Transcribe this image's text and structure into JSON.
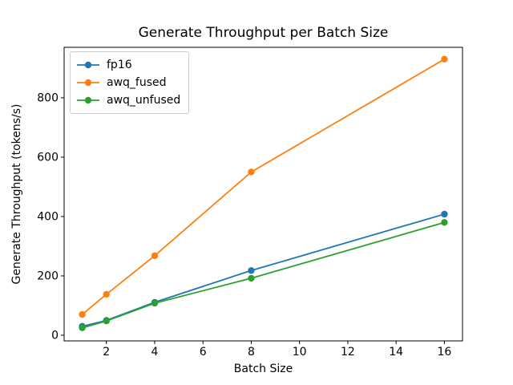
{
  "figure": {
    "background": "#ffffff",
    "axis_color": "#000000"
  },
  "chart_data": {
    "type": "line",
    "title": "Generate Throughput per Batch Size",
    "xlabel": "Batch Size",
    "ylabel": "Generate Throughput (tokens/s)",
    "x": [
      1,
      2,
      4,
      8,
      16
    ],
    "series": [
      {
        "name": "fp16",
        "color": "#1f77b4",
        "values": [
          30,
          50,
          111,
          218,
          408
        ]
      },
      {
        "name": "awq_fused",
        "color": "#ff7f0e",
        "values": [
          70,
          138,
          268,
          550,
          930
        ]
      },
      {
        "name": "awq_unfused",
        "color": "#2ca02c",
        "values": [
          25,
          48,
          108,
          192,
          380
        ]
      }
    ],
    "xticks": [
      2,
      4,
      6,
      8,
      10,
      12,
      14,
      16
    ],
    "yticks": [
      0,
      200,
      400,
      600,
      800
    ],
    "xlim": [
      0.25,
      16.75
    ],
    "ylim": [
      -19,
      970
    ],
    "grid": false,
    "legend_position": "upper left",
    "marker": "o",
    "line_width": 1.8,
    "marker_radius": 4.2
  }
}
